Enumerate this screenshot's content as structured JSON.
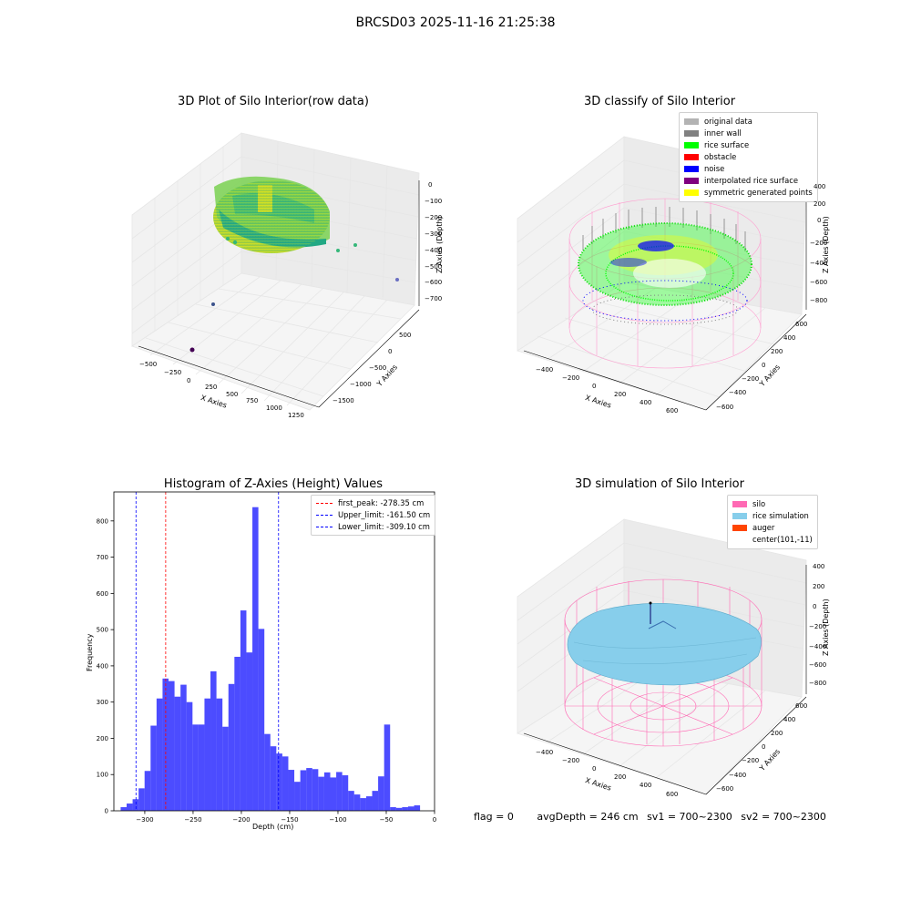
{
  "suptitle": "BRCSD03 2025-11-16 21:25:38",
  "panels": {
    "raw": {
      "title": "3D Plot of Silo Interior(row data)",
      "xlabel": "X Axies",
      "ylabel": "Y Axies",
      "zlabel": "Z Axies (Depth)",
      "xticks": [
        "−500",
        "−250",
        "0",
        "250",
        "500",
        "750",
        "1000",
        "1250"
      ],
      "yticks": [
        "500",
        "0",
        "−500",
        "−1000",
        "−1500"
      ],
      "zticks": [
        "0",
        "−100",
        "−200",
        "−300",
        "−400",
        "−500",
        "−600",
        "−700"
      ]
    },
    "classify": {
      "title": "3D classify of Silo Interior",
      "xlabel": "X Axies",
      "ylabel": "Y Axies",
      "zlabel": "Z Axies (Depth)",
      "xticks": [
        "−400",
        "−200",
        "0",
        "200",
        "400",
        "600"
      ],
      "yticks": [
        "600",
        "400",
        "200",
        "0",
        "−200",
        "−400",
        "−600"
      ],
      "zticks": [
        "200",
        "0",
        "−200",
        "−400",
        "−600",
        "−800"
      ],
      "zticks_top": "400",
      "legend": [
        {
          "label": "original data",
          "color": "#b3b3b3"
        },
        {
          "label": "inner wall",
          "color": "#808080"
        },
        {
          "label": "rice surface",
          "color": "#00ff00"
        },
        {
          "label": "obstacle",
          "color": "#ff0000"
        },
        {
          "label": "noise",
          "color": "#0000ff"
        },
        {
          "label": "interpolated rice surface",
          "color": "#800080"
        },
        {
          "label": "symmetric generated points",
          "color": "#ffff00"
        }
      ]
    },
    "simulation": {
      "title": "3D simulation of Silo Interior",
      "xlabel": "X Axies",
      "ylabel": "Y Axies",
      "zlabel": "Z Axies (Depth)",
      "xticks": [
        "−400",
        "−200",
        "0",
        "200",
        "400",
        "600"
      ],
      "yticks": [
        "600",
        "400",
        "200",
        "0",
        "−200",
        "−400",
        "−600"
      ],
      "zticks": [
        "400",
        "200",
        "0",
        "−200",
        "−400",
        "−600",
        "−800"
      ],
      "legend": [
        {
          "label": "silo",
          "color": "#ff69b4"
        },
        {
          "label": "rice simulation",
          "color": "#87ceeb"
        },
        {
          "label": "auger",
          "color": "#ff4500"
        },
        {
          "label": "center(101,-11)",
          "color": ""
        }
      ]
    }
  },
  "footer": {
    "flag": "flag = 0",
    "avg": "avgDepth = 246 cm",
    "sv1": "sv1 = 700~2300",
    "sv2": "sv2 = 700~2300"
  },
  "chart_data": [
    {
      "type": "bar",
      "title": "Histogram of Z-Axies (Height) Values",
      "xlabel": "Depth (cm)",
      "ylabel": "Frequency",
      "xlim": [
        -332,
        0
      ],
      "ylim": [
        0,
        880
      ],
      "bar_color": "#0000ff",
      "bin_width": 6.2,
      "bin_starts": [
        -325,
        -318.8,
        -312.6,
        -306.4,
        -300.2,
        -294,
        -287.8,
        -281.6,
        -275.4,
        -269.2,
        -263,
        -256.8,
        -250.6,
        -244.4,
        -238.2,
        -232,
        -225.8,
        -219.6,
        -213.4,
        -207.2,
        -201,
        -194.8,
        -188.6,
        -182.4,
        -176.2,
        -170,
        -163.8,
        -157.6,
        -151.4,
        -145.2,
        -139,
        -132.8,
        -126.6,
        -120.4,
        -114.2,
        -108,
        -101.8,
        -95.6,
        -89.4,
        -83.2,
        -77,
        -70.8,
        -64.6,
        -58.4,
        -52.2,
        -46,
        -39.8,
        -33.6,
        -27.4,
        -21.2
      ],
      "values": [
        10,
        20,
        32,
        62,
        110,
        235,
        310,
        365,
        358,
        315,
        348,
        300,
        238,
        238,
        310,
        385,
        310,
        232,
        350,
        425,
        553,
        437,
        838,
        502,
        212,
        178,
        158,
        150,
        113,
        80,
        112,
        118,
        115,
        94,
        106,
        92,
        107,
        98,
        55,
        45,
        35,
        40,
        55,
        95,
        238,
        10,
        8,
        10,
        12,
        15
      ],
      "xticks": [
        -300,
        -250,
        -200,
        -150,
        -100,
        -50,
        0
      ],
      "xtick_labels": [
        "−300",
        "−250",
        "−200",
        "−150",
        "−100",
        "−50",
        "0"
      ],
      "yticks": [
        0,
        100,
        200,
        300,
        400,
        500,
        600,
        700,
        800
      ],
      "vlines": [
        {
          "label": "first_peak: -278.35 cm",
          "x": -278.35,
          "color": "#ff0000"
        },
        {
          "label": "Upper_limit: -161.50 cm",
          "x": -161.5,
          "color": "#0000ff"
        },
        {
          "label": "Lower_limit: -309.10 cm",
          "x": -309.1,
          "color": "#0000ff"
        }
      ],
      "grid": false,
      "legend_position": "top-right"
    }
  ]
}
